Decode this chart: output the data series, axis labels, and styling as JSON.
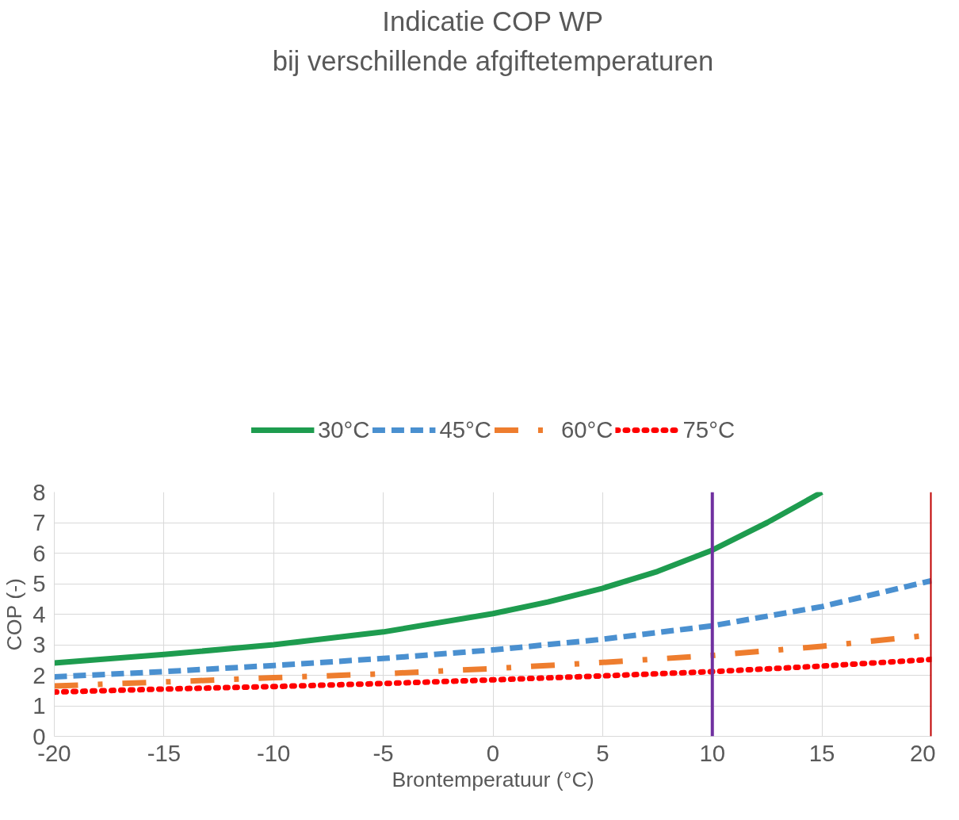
{
  "chart_data": {
    "type": "line",
    "title": "Indicatie COP WP",
    "subtitle": "bij verschillende afgiftetemperaturen",
    "xlabel": "Brontemperatuur (°C)",
    "ylabel": "COP (-)",
    "xlim": [
      -20,
      20
    ],
    "xticks": [
      -20,
      -15,
      -10,
      -5,
      0,
      5,
      10,
      15,
      20
    ],
    "ylim": [
      0,
      8
    ],
    "yticks": [
      0,
      1,
      2,
      3,
      4,
      5,
      6,
      7,
      8
    ],
    "grid": true,
    "legend": "top",
    "marker": "none",
    "series": [
      {
        "name": "30°C",
        "color": "#1e9c4f",
        "line_style": "solid",
        "x": [
          -20,
          -15,
          -10,
          -5,
          0,
          2.5,
          5,
          7.5,
          10,
          12.5,
          15
        ],
        "values": [
          2.4,
          2.68,
          3.0,
          3.42,
          4.02,
          4.4,
          4.85,
          5.4,
          6.1,
          7.0,
          8.0
        ]
      },
      {
        "name": "45°C",
        "color": "#4a90d0",
        "line_style": "dashed",
        "x": [
          -20,
          -15,
          -10,
          -5,
          0,
          5,
          10,
          15,
          20
        ],
        "values": [
          1.95,
          2.12,
          2.32,
          2.55,
          2.83,
          3.18,
          3.62,
          4.25,
          5.1
        ]
      },
      {
        "name": "60°C",
        "color": "#ee7d2e",
        "line_style": "dashdot",
        "x": [
          -20,
          -15,
          -10,
          -5,
          0,
          5,
          10,
          15,
          20
        ],
        "values": [
          1.65,
          1.78,
          1.92,
          2.05,
          2.22,
          2.42,
          2.65,
          2.95,
          3.32
        ]
      },
      {
        "name": "75°C",
        "color": "#ff0000",
        "line_style": "dotted",
        "x": [
          -20,
          -15,
          -10,
          -5,
          0,
          5,
          10,
          15,
          20
        ],
        "values": [
          1.45,
          1.55,
          1.63,
          1.73,
          1.85,
          1.98,
          2.12,
          2.3,
          2.52
        ]
      }
    ],
    "ref_lines": [
      {
        "axis": "x",
        "value": 10,
        "label": null,
        "color": "#7030a0"
      },
      {
        "axis": "x",
        "value": 20,
        "label": null,
        "color": "#c00000"
      }
    ]
  }
}
